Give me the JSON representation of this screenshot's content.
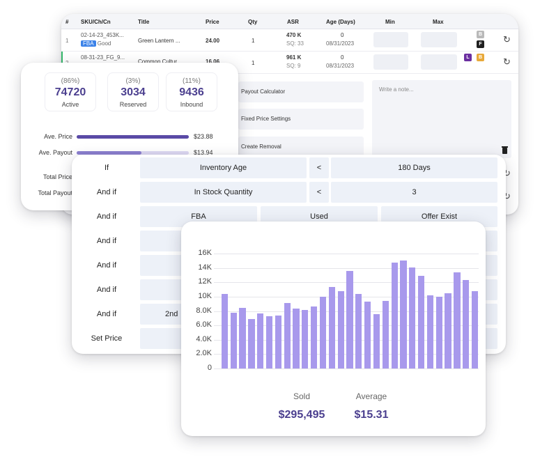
{
  "inventory": {
    "headers": {
      "num": "#",
      "sku": "SKU/Ch/Cn",
      "title": "Title",
      "price": "Price",
      "qty": "Qty",
      "asr": "ASR",
      "age": "Age (Days)",
      "min": "Min",
      "max": "Max"
    },
    "rows": [
      {
        "num": "1",
        "sku": "02-14-23_453K...",
        "channel": "FBA",
        "condition": "Good",
        "title": "Green Lantern ...",
        "price": "24.00",
        "qty": "1",
        "asr": "470 K",
        "sq": "SQ: 33",
        "age": "0",
        "date": "08/31/2023",
        "badges": [
          "B",
          "F"
        ]
      },
      {
        "num": "2",
        "sku": "08-31-23_FG_9...",
        "title": "Common Cultur...",
        "price": "16.06",
        "qty": "1",
        "asr": "961 K",
        "sq": "SQ: 9",
        "age": "0",
        "date": "08/31/2023",
        "badges": [
          "L",
          "B"
        ]
      }
    ],
    "menu": [
      "Payout Calculator",
      "Fixed Price Settings",
      "Create Removal"
    ],
    "note_placeholder": "Write a note...",
    "colors": {
      "fba": "#3b82e8",
      "badge_b": "#b9b9b9",
      "badge_f": "#1f1f1f",
      "badge_l": "#6b2fa0",
      "badge_b2": "#e8a93a"
    }
  },
  "stats": {
    "cards": [
      {
        "pct": "(86%)",
        "value": "74720",
        "label": "Active"
      },
      {
        "pct": "(3%)",
        "value": "3034",
        "label": "Reserved"
      },
      {
        "pct": "(11%)",
        "value": "9436",
        "label": "Inbound"
      }
    ],
    "bars": [
      {
        "label": "Ave. Price",
        "value": "$23.88",
        "fill": 1.0
      },
      {
        "label": "Ave. Payout",
        "value": "$13.94",
        "fill": 0.58
      }
    ],
    "totals": [
      "Total Price",
      "Total Payout"
    ]
  },
  "rules": {
    "rows": [
      {
        "label": "If",
        "cells": [
          "Inventory Age",
          "<",
          "180 Days"
        ]
      },
      {
        "label": "And if",
        "cells": [
          "In Stock Quantity",
          "<",
          "3"
        ]
      },
      {
        "label": "And if",
        "cells": [
          "FBA",
          "Used",
          "Offer Exist"
        ]
      },
      {
        "label": "And if",
        "cells": []
      },
      {
        "label": "And if",
        "cells": []
      },
      {
        "label": "And if",
        "cells": []
      },
      {
        "label": "And if",
        "cells": [
          "2nd"
        ]
      },
      {
        "label": "Set Price",
        "cells": []
      }
    ]
  },
  "chart_data": {
    "type": "bar",
    "yticks": [
      "16K",
      "14K",
      "12K",
      "10K",
      "8.0K",
      "6.0K",
      "4.0K",
      "2.0K",
      "0"
    ],
    "ylim": [
      0,
      16000
    ],
    "values": [
      10400,
      7800,
      8400,
      6900,
      7700,
      7300,
      7400,
      9100,
      8300,
      8100,
      8600,
      10000,
      11300,
      10800,
      13600,
      10400,
      9300,
      7600,
      9400,
      14700,
      15000,
      14100,
      12900,
      10200,
      10000,
      10500,
      13400,
      12300,
      10800
    ],
    "color": "#a899ec",
    "summary": [
      {
        "label": "Sold",
        "value": "$295,495"
      },
      {
        "label": "Average",
        "value": "$15.31"
      }
    ]
  }
}
